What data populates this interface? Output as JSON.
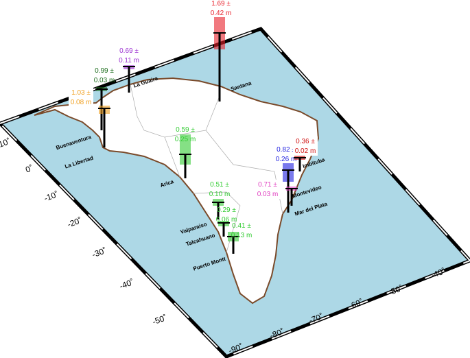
{
  "stations": [
    {
      "name": "Santana",
      "value": "1.69 ±",
      "error": "0.42 m",
      "color": "#e8202a"
    },
    {
      "name": "La Guaira",
      "value": "0.69 ±",
      "error": "0.11 m",
      "color": "#9b30d0"
    },
    {
      "name": "Buenaventura",
      "value": "0.99 ±",
      "error": "0.03 m",
      "color": "#1a6b1a"
    },
    {
      "name": "La Libertad",
      "value": "1.03 ±",
      "error": "0.08 m",
      "color": "#f0a020"
    },
    {
      "name": "Arica",
      "value": "0.59 ±",
      "error": "0.25 m",
      "color": "#33cc33"
    },
    {
      "name": "Valparaiso",
      "value": "0.51 ±",
      "error": "0.10 m",
      "color": "#33cc33"
    },
    {
      "name": "Talcahuano",
      "value": "0.29 ±",
      "error": "0.06 m",
      "color": "#33cc33"
    },
    {
      "name": "Puerto Montt",
      "value": "0.41 ±",
      "error": "0.13 m",
      "color": "#33cc33"
    },
    {
      "name": "Montevideo",
      "value": "0.82 ±",
      "error": "0.26 m",
      "color": "#2020e0"
    },
    {
      "name": "Mar del Plata",
      "value": "0.71 ±",
      "error": "0.03 m",
      "color": "#e040c0"
    },
    {
      "name": "Imbituba",
      "value": "0.36 ±",
      "error": "0.02 m",
      "color": "#d01010"
    }
  ],
  "lat_labels": [
    "10˚",
    "0˚",
    "-10˚",
    "-20˚",
    "-30˚",
    "-40˚",
    "-50˚"
  ],
  "lon_labels": [
    "-90˚",
    "-80˚",
    "-70˚",
    "-60˚",
    "-50˚",
    "-40˚"
  ]
}
